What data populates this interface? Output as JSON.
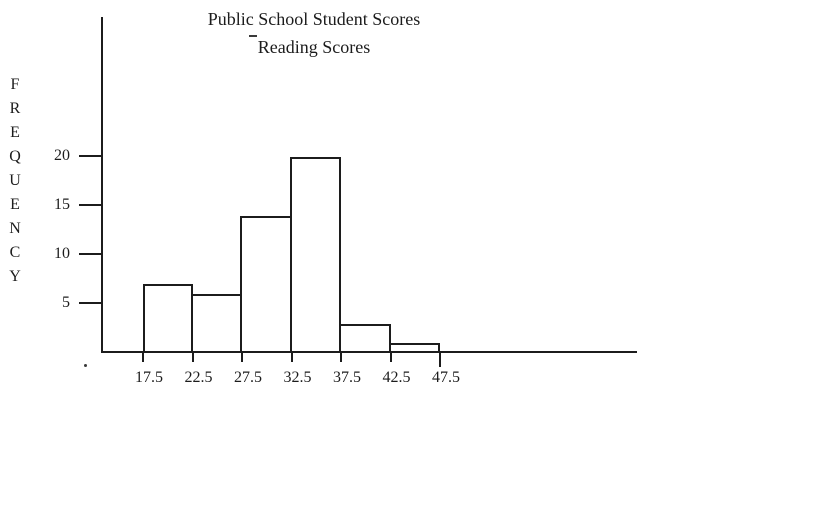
{
  "chart_data": {
    "type": "bar",
    "subtype": "histogram",
    "title": "Public School Student Scores",
    "subtitle": "Reading Scores",
    "ylabel": "FREQUENCY",
    "xlabel": "",
    "bin_edges": [
      17.5,
      22.5,
      27.5,
      32.5,
      37.5,
      42.5,
      47.5
    ],
    "x_tick_labels": [
      "17.5",
      "22.5",
      "27.5",
      "32.5",
      "37.5",
      "42.5",
      "47.5"
    ],
    "values": [
      7,
      6,
      14,
      20,
      3,
      1
    ],
    "y_ticks": [
      5,
      10,
      15,
      20
    ],
    "ylim": [
      0,
      34
    ],
    "grid": false,
    "legend": "none",
    "bar_fill": "#ffffff",
    "ink_color": "#1c1c1c",
    "background": "#ffffff"
  }
}
